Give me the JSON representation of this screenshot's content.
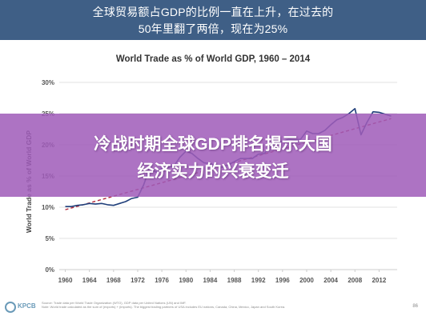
{
  "header": {
    "line1": "全球贸易额占GDP的比例一直在上升，在过去的",
    "line2": "50年里翻了两倍，现在为25%"
  },
  "banner": {
    "line1": "冷战时期全球GDP排名揭示大国",
    "line2": "经济实力的兴衰变迁"
  },
  "footer": {
    "logo_text": "KPCB",
    "source_line1": "Source: Trade data per World Trade Organization (WTO), GDP data per United Nations (UN) and IMF.",
    "source_line2": "Note: World trade calculated as the sum of (exports) + (imports). The biggest trading partners of USA includes EU nations, Canada, China, Mexico, Japan and South Korea.",
    "page_number": "86"
  },
  "colors": {
    "header_bg": "#3f5f86",
    "line": "#1f3f7a",
    "trend": "#b3283a",
    "banner_bg": "#a05cb9"
  },
  "chart_data": {
    "type": "line",
    "title": "World Trade as % of World GDP, 1960 – 2014",
    "xlabel": "",
    "ylabel": "World Trade as % of World GDP",
    "x_ticks": [
      "1960",
      "1964",
      "1968",
      "1972",
      "1976",
      "1980",
      "1984",
      "1988",
      "1992",
      "1996",
      "2000",
      "2004",
      "2008",
      "2012"
    ],
    "y_ticks": [
      "0%",
      "5%",
      "10%",
      "15%",
      "20%",
      "25%",
      "30%"
    ],
    "xlim": [
      1959,
      2015
    ],
    "ylim": [
      0,
      30
    ],
    "grid": true,
    "series": [
      {
        "x": [
          1960,
          1961,
          1962,
          1963,
          1964,
          1965,
          1966,
          1967,
          1968,
          1969,
          1970,
          1971,
          1972,
          1973,
          1974,
          1975,
          1976,
          1977,
          1978,
          1979,
          1980,
          1981,
          1982,
          1983,
          1984,
          1985,
          1986,
          1987,
          1988,
          1989,
          1990,
          1991,
          1992,
          1993,
          1994,
          1995,
          1996,
          1997,
          1998,
          1999,
          2000,
          2001,
          2002,
          2003,
          2004,
          2005,
          2006,
          2007,
          2008,
          2009,
          2010,
          2011,
          2012,
          2013,
          2014
        ],
        "values": [
          10.1,
          10.1,
          10.3,
          10.4,
          10.6,
          10.5,
          10.6,
          10.4,
          10.3,
          10.6,
          10.9,
          11.4,
          11.6,
          13.6,
          16.4,
          15.6,
          16.2,
          16.4,
          16.6,
          18.0,
          19.0,
          18.6,
          17.8,
          17.1,
          17.0,
          16.6,
          16.4,
          16.8,
          17.3,
          17.8,
          17.8,
          17.8,
          18.5,
          18.6,
          19.7,
          20.5,
          20.5,
          20.9,
          20.8,
          20.9,
          22.2,
          21.8,
          21.8,
          22.3,
          23.2,
          24.0,
          24.4,
          25.0,
          25.8,
          21.6,
          23.6,
          25.3,
          25.2,
          24.9,
          24.6
        ]
      },
      {
        "name": "",
        "x": [
          1960,
          2014
        ],
        "values": [
          9.6,
          24.2
        ]
      }
    ]
  }
}
